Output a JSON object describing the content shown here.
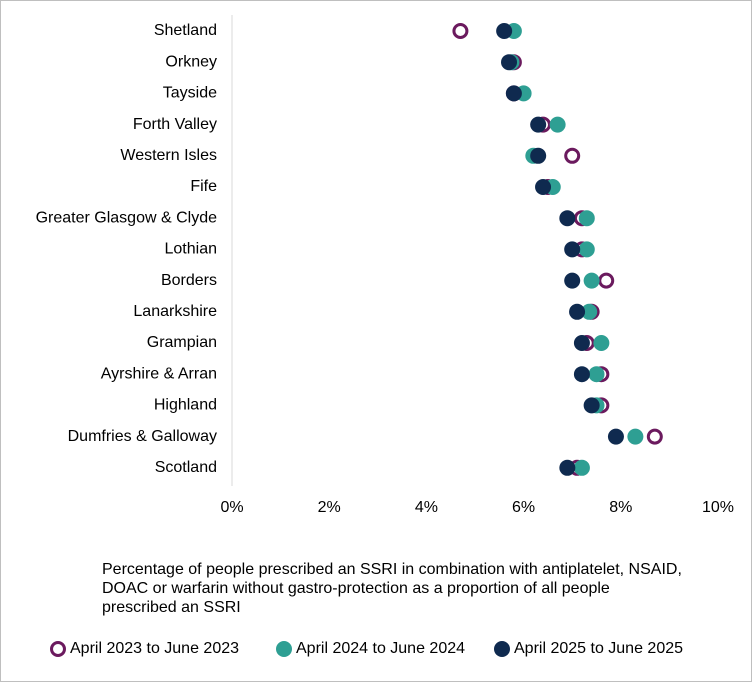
{
  "chart_data": {
    "type": "dot",
    "x_label": "Percentage of people prescribed an SSRI in combination with antiplatelet, NSAID, DOAC or warfarin without gastro-protection as a proportion of all people prescribed an SSRI",
    "categories": [
      "Shetland",
      "Orkney",
      "Tayside",
      "Forth Valley",
      "Western Isles",
      "Fife",
      "Greater Glasgow & Clyde",
      "Lothian",
      "Borders",
      "Lanarkshire",
      "Grampian",
      "Ayrshire & Arran",
      "Highland",
      "Dumfries & Galloway",
      "Scotland"
    ],
    "series": [
      {
        "name": "April 2023 to June 2023",
        "color": "#6b1a5e",
        "marker": "open",
        "values": [
          4.7,
          5.8,
          5.8,
          6.4,
          7.0,
          6.5,
          7.2,
          7.2,
          7.7,
          7.4,
          7.3,
          7.6,
          7.6,
          8.7,
          7.1
        ]
      },
      {
        "name": "April 2024 to June 2024",
        "color": "#2e9f93",
        "marker": "filled",
        "values": [
          5.8,
          5.75,
          6.0,
          6.7,
          6.2,
          6.6,
          7.3,
          7.3,
          7.4,
          7.35,
          7.6,
          7.5,
          7.5,
          8.3,
          7.2
        ]
      },
      {
        "name": "April 2025 to June 2025",
        "color": "#0f2a4f",
        "marker": "filled",
        "values": [
          5.6,
          5.7,
          5.8,
          6.3,
          6.3,
          6.4,
          6.9,
          7.0,
          7.0,
          7.1,
          7.2,
          7.2,
          7.4,
          7.9,
          6.9
        ]
      }
    ],
    "xlim": [
      0,
      10
    ],
    "xticks": [
      {
        "value": 0,
        "label": "0%"
      },
      {
        "value": 2,
        "label": "2%"
      },
      {
        "value": 4,
        "label": "4%"
      },
      {
        "value": 6,
        "label": "6%"
      },
      {
        "value": 8,
        "label": "8%"
      },
      {
        "value": 10,
        "label": "10%"
      }
    ]
  }
}
